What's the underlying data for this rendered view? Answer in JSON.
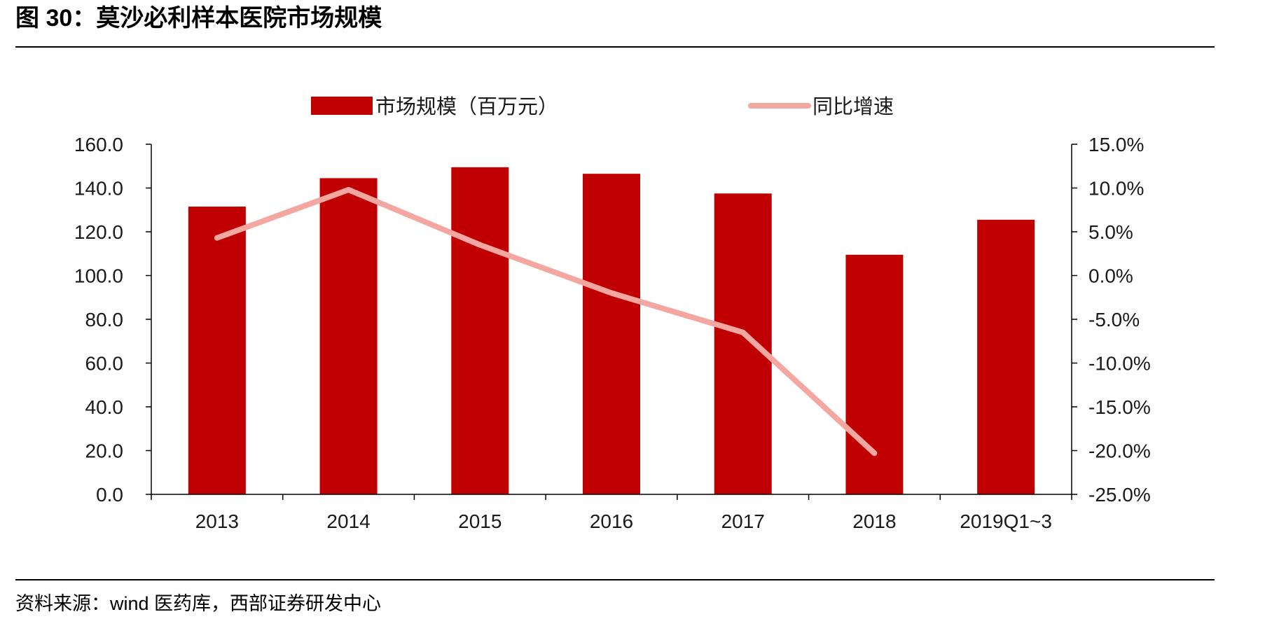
{
  "figure": {
    "title": "图 30：莫沙必利样本医院市场规模",
    "source": "资料来源：wind 医药库，西部证券研发中心"
  },
  "colors": {
    "bar": "#C00000",
    "line": "#F4A7A0",
    "axis": "#000000"
  },
  "chart_data": {
    "type": "bar",
    "categories": [
      "2013",
      "2014",
      "2015",
      "2016",
      "2017",
      "2018",
      "2019Q1~3"
    ],
    "series": [
      {
        "name": "市场规模（百万元）",
        "type": "bar",
        "axis": "left",
        "values": [
          131.5,
          144.5,
          149.5,
          146.5,
          137.5,
          109.5,
          125.5
        ]
      },
      {
        "name": "同比增速",
        "type": "line",
        "axis": "right",
        "values": [
          4.3,
          9.8,
          3.5,
          -2.0,
          -6.5,
          -20.3,
          null
        ]
      }
    ],
    "y_left": {
      "range": [
        0,
        160
      ],
      "ticks": [
        "0.0",
        "20.0",
        "40.0",
        "60.0",
        "80.0",
        "100.0",
        "120.0",
        "140.0",
        "160.0"
      ]
    },
    "y_right": {
      "range": [
        -25,
        15
      ],
      "unit": "%",
      "ticks": [
        "-25.0%",
        "-20.0%",
        "-15.0%",
        "-10.0%",
        "-5.0%",
        "0.0%",
        "5.0%",
        "10.0%",
        "15.0%"
      ]
    },
    "grid": false,
    "legend_position": "top"
  }
}
